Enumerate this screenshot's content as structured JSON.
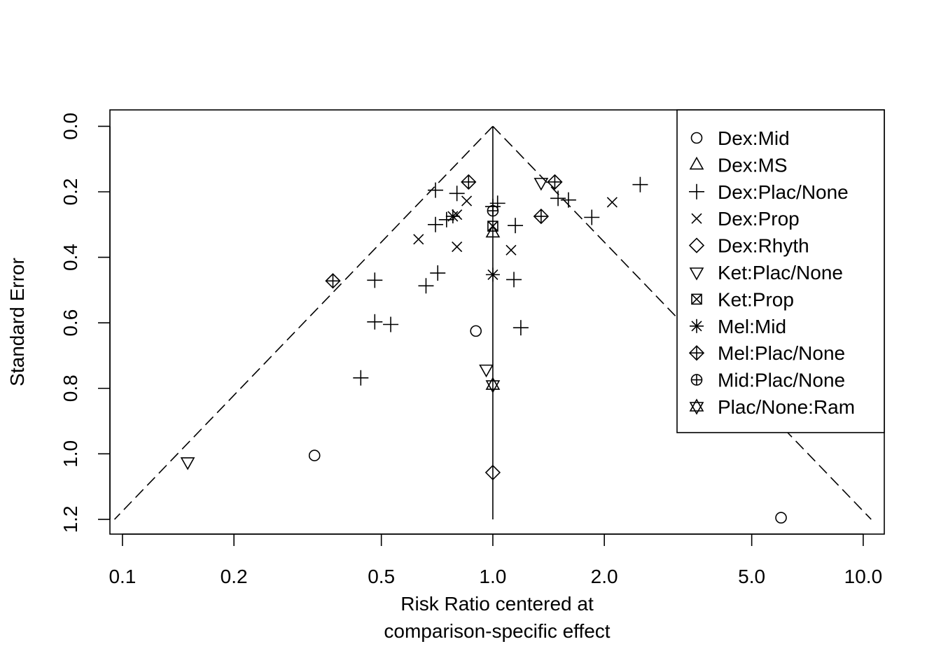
{
  "chart_data": {
    "type": "scatter",
    "subtype": "funnel",
    "title": "",
    "xlabel_lines": [
      "Risk Ratio centered at",
      "comparison-specific effect"
    ],
    "ylabel": "Standard Error",
    "x_scale": "log",
    "y_reversed": true,
    "xlim": [
      0.0925,
      11.4
    ],
    "ylim": [
      1.245,
      -0.05
    ],
    "x_ticks": [
      0.1,
      0.2,
      0.5,
      1.0,
      2.0,
      5.0,
      10.0
    ],
    "x_tick_labels": [
      "0.1",
      "0.2",
      "0.5",
      "1.0",
      "2.0",
      "5.0",
      "10.0"
    ],
    "y_ticks": [
      0.0,
      0.2,
      0.4,
      0.6,
      0.8,
      1.0,
      1.2
    ],
    "y_tick_labels": [
      "0.0",
      "0.2",
      "0.4",
      "0.6",
      "0.8",
      "1.0",
      "1.2"
    ],
    "funnel": {
      "center": 1.0,
      "se_max": 1.2,
      "z": 1.96
    },
    "grid": false,
    "legend_position": "top-right",
    "legend": [
      {
        "label": "Dex:Mid",
        "symbol": "circle"
      },
      {
        "label": "Dex:MS",
        "symbol": "triangle"
      },
      {
        "label": "Dex:Plac/None",
        "symbol": "plus"
      },
      {
        "label": "Dex:Prop",
        "symbol": "cross"
      },
      {
        "label": "Dex:Rhyth",
        "symbol": "diamond"
      },
      {
        "label": "Ket:Plac/None",
        "symbol": "triangle-down"
      },
      {
        "label": "Ket:Prop",
        "symbol": "square-cross"
      },
      {
        "label": "Mel:Mid",
        "symbol": "asterisk"
      },
      {
        "label": "Mel:Plac/None",
        "symbol": "diamond-plus"
      },
      {
        "label": "Mid:Plac/None",
        "symbol": "circle-plus"
      },
      {
        "label": "Plac/None:Ram",
        "symbol": "star-of-david"
      }
    ],
    "series": [
      {
        "name": "Dex:Mid",
        "symbol": "circle",
        "points": [
          [
            0.9,
            0.625
          ],
          [
            0.33,
            1.005
          ],
          [
            6.0,
            1.195
          ]
        ]
      },
      {
        "name": "Dex:MS",
        "symbol": "triangle",
        "points": [
          [
            1.0,
            0.325
          ]
        ]
      },
      {
        "name": "Dex:Plac/None",
        "symbol": "plus",
        "points": [
          [
            0.7,
            0.195
          ],
          [
            0.8,
            0.205
          ],
          [
            1.0,
            0.245
          ],
          [
            1.03,
            0.235
          ],
          [
            2.5,
            0.178
          ],
          [
            1.5,
            0.22
          ],
          [
            1.6,
            0.225
          ],
          [
            0.7,
            0.3
          ],
          [
            0.75,
            0.285
          ],
          [
            1.15,
            0.303
          ],
          [
            1.85,
            0.278
          ],
          [
            0.71,
            0.448
          ],
          [
            0.48,
            0.47
          ],
          [
            1.14,
            0.468
          ],
          [
            0.66,
            0.487
          ],
          [
            0.48,
            0.597
          ],
          [
            0.53,
            0.605
          ],
          [
            1.19,
            0.615
          ],
          [
            0.44,
            0.768
          ]
        ]
      },
      {
        "name": "Dex:Prop",
        "symbol": "cross",
        "points": [
          [
            0.85,
            0.228
          ],
          [
            2.1,
            0.232
          ],
          [
            0.8,
            0.27
          ],
          [
            0.63,
            0.345
          ],
          [
            0.8,
            0.368
          ],
          [
            1.12,
            0.378
          ]
        ]
      },
      {
        "name": "Dex:Rhyth",
        "symbol": "diamond",
        "points": [
          [
            1.0,
            1.057
          ]
        ]
      },
      {
        "name": "Ket:Plac/None",
        "symbol": "triangle-down",
        "points": [
          [
            1.35,
            0.172
          ],
          [
            0.96,
            0.742
          ],
          [
            0.15,
            1.025
          ]
        ]
      },
      {
        "name": "Ket:Prop",
        "symbol": "square-cross",
        "points": [
          [
            1.0,
            0.305
          ]
        ]
      },
      {
        "name": "Mel:Mid",
        "symbol": "asterisk",
        "points": [
          [
            0.78,
            0.275
          ],
          [
            1.0,
            0.453
          ]
        ]
      },
      {
        "name": "Mel:Plac/None",
        "symbol": "diamond-plus",
        "points": [
          [
            0.86,
            0.17
          ],
          [
            1.47,
            0.17
          ],
          [
            1.35,
            0.275
          ],
          [
            0.37,
            0.472
          ]
        ]
      },
      {
        "name": "Mid:Plac/None",
        "symbol": "circle-plus",
        "points": [
          [
            1.0,
            0.258
          ]
        ]
      },
      {
        "name": "Plac/None:Ram",
        "symbol": "star-of-david",
        "points": [
          [
            1.0,
            0.79
          ]
        ]
      }
    ]
  }
}
